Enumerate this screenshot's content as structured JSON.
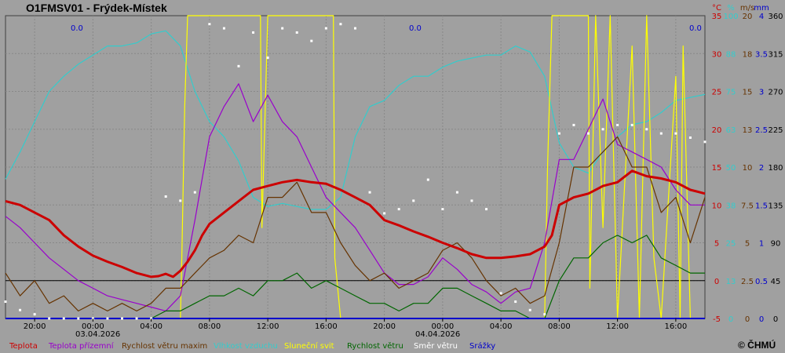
{
  "title": "O1FMSV01 - Frýdek-Místek",
  "copyright": "© ČHMÚ",
  "precip_notes": [
    "0.0",
    "0.0",
    "0.0"
  ],
  "date_labels": [
    "03.04.2026",
    "04.04.2026"
  ],
  "colors": {
    "temperature": "#cc0000",
    "ground_temperature": "#9900cc",
    "wind_gust": "#663300",
    "humidity": "#33cccc",
    "sunshine": "#ffff00",
    "wind_speed": "#006600",
    "wind_direction": "#ffffff",
    "precipitation": "#0000cc",
    "background": "#a0a0a0",
    "grid": "#808080"
  },
  "chart_data": {
    "type": "line",
    "title": "O1FMSV01 - Frýdek-Místek",
    "x_unit": "hours since 02.04.2026 18:00",
    "x_range": [
      0,
      48
    ],
    "x_ticks": [
      {
        "label": "20:00",
        "x": 2
      },
      {
        "label": "00:00",
        "x": 6
      },
      {
        "label": "04:00",
        "x": 10
      },
      {
        "label": "08:00",
        "x": 14
      },
      {
        "label": "12:00",
        "x": 18
      },
      {
        "label": "16:00",
        "x": 22
      },
      {
        "label": "20:00",
        "x": 26
      },
      {
        "label": "00:00",
        "x": 30
      },
      {
        "label": "04:00",
        "x": 34
      },
      {
        "label": "08:00",
        "x": 38
      },
      {
        "label": "12:00",
        "x": 42
      },
      {
        "label": "16:00",
        "x": 46
      }
    ],
    "axes": [
      {
        "unit": "°C",
        "color": "#cc0000",
        "ticks": [
          "35",
          "30",
          "25",
          "20",
          "15",
          "10",
          "5",
          "0",
          "-5"
        ]
      },
      {
        "unit": "%",
        "color": "#33cccc",
        "ticks": [
          "100",
          "88",
          "75",
          "63",
          "50",
          "38",
          "25",
          "13",
          "0"
        ]
      },
      {
        "unit": "m/s",
        "color": "#663300",
        "ticks": [
          "20",
          "18",
          "15",
          "13",
          "10",
          "7.5",
          "5",
          "2.5",
          "0"
        ]
      },
      {
        "unit": "mm",
        "color": "#0000cc",
        "ticks": [
          "4",
          "3.5",
          "3",
          "2.5",
          "2",
          "1.5",
          "1",
          "0.5",
          "0"
        ]
      },
      {
        "unit": "",
        "color": "#000000",
        "ticks": [
          "360",
          "315",
          "270",
          "225",
          "180",
          "135",
          "90",
          "45",
          "0"
        ]
      }
    ],
    "y_range_temp": [
      -5,
      35
    ],
    "grid": true,
    "legend_position": "bottom",
    "series": [
      {
        "name": "Teplota",
        "axis": "°C",
        "color": "#cc0000",
        "x": [
          0,
          1,
          2,
          3,
          4,
          5,
          6,
          7,
          8,
          9,
          10,
          10.5,
          11,
          11.5,
          12,
          12.5,
          13,
          13.5,
          14,
          15,
          16,
          17,
          18,
          19,
          20,
          21,
          22,
          23,
          24,
          25,
          26,
          27,
          28,
          29,
          30,
          31,
          32,
          33,
          34,
          35,
          36,
          37,
          37.5,
          38,
          39,
          40,
          41,
          42,
          43,
          44,
          45,
          46,
          47,
          48
        ],
        "values": [
          10.5,
          10,
          9,
          8,
          6,
          4.5,
          3.3,
          2.5,
          1.8,
          1,
          0.5,
          0.6,
          0.9,
          0.5,
          1.3,
          2.5,
          4,
          6,
          7.5,
          9,
          10.5,
          12,
          12.5,
          13,
          13.3,
          13,
          12.8,
          12,
          11,
          10,
          8,
          7.3,
          6.5,
          5.8,
          5,
          4.3,
          3.5,
          3,
          3,
          3.2,
          3.5,
          4.5,
          6,
          10,
          11,
          11.5,
          12.5,
          13,
          14.5,
          13.8,
          13.5,
          13,
          12,
          11.5
        ]
      },
      {
        "name": "Teplota přízemní",
        "axis": "°C",
        "color": "#9900cc",
        "x": [
          0,
          1,
          2,
          3,
          4,
          5,
          6,
          7,
          8,
          9,
          10,
          11,
          12,
          13,
          14,
          15,
          16,
          17,
          18,
          19,
          20,
          21,
          22,
          23,
          24,
          25,
          26,
          27,
          28,
          29,
          30,
          31,
          32,
          33,
          34,
          35,
          36,
          37,
          38,
          39,
          40,
          41,
          42,
          43,
          44,
          45,
          46,
          47,
          48
        ],
        "values": [
          8.5,
          7,
          5,
          3,
          1.5,
          0,
          -1,
          -2,
          -2.5,
          -3,
          -3.5,
          -4,
          -2,
          8,
          19,
          23,
          26,
          21,
          24.5,
          21,
          19,
          15,
          11,
          9,
          7,
          4,
          1,
          -0.5,
          -0.5,
          0.5,
          3,
          1.5,
          -0.5,
          -1.5,
          -3,
          -1.5,
          -1,
          5,
          16,
          16,
          20,
          24,
          18,
          17,
          16,
          15,
          12,
          10,
          10
        ]
      },
      {
        "name": "Rychlost větru maxim",
        "axis": "m/s",
        "color": "#663300",
        "x": [
          0,
          1,
          2,
          3,
          4,
          5,
          6,
          7,
          8,
          9,
          10,
          11,
          12,
          13,
          14,
          15,
          16,
          17,
          18,
          19,
          20,
          21,
          22,
          23,
          24,
          25,
          26,
          27,
          28,
          29,
          30,
          31,
          32,
          33,
          34,
          35,
          36,
          37,
          38,
          39,
          40,
          41,
          42,
          43,
          44,
          45,
          46,
          47,
          48
        ],
        "values": [
          3,
          1.5,
          2.5,
          1,
          1.5,
          0.5,
          1,
          0.5,
          1,
          0.5,
          1,
          2,
          2,
          3,
          4,
          4.5,
          5.5,
          5,
          8,
          8,
          9,
          7,
          7,
          5,
          3.5,
          2.5,
          3,
          2,
          2.5,
          3,
          4.5,
          5,
          4,
          2.5,
          1.5,
          2,
          1,
          1.5,
          5,
          10,
          10,
          11,
          12,
          10,
          10,
          7,
          8,
          5,
          8
        ]
      },
      {
        "name": "Vlhkost vzduchu",
        "axis": "%",
        "color": "#33cccc",
        "x": [
          0,
          1,
          2,
          3,
          4,
          5,
          6,
          7,
          8,
          9,
          10,
          11,
          12,
          13,
          14,
          15,
          16,
          17,
          18,
          19,
          20,
          21,
          22,
          23,
          24,
          25,
          26,
          27,
          28,
          29,
          30,
          31,
          32,
          33,
          34,
          35,
          36,
          37,
          38,
          39,
          40,
          41,
          42,
          43,
          44,
          45,
          46,
          47,
          48
        ],
        "values": [
          46,
          55,
          65,
          75,
          80,
          84,
          87,
          90,
          90,
          91,
          94,
          95,
          90,
          75,
          65,
          60,
          52,
          40,
          37,
          38,
          37,
          36,
          36,
          40,
          60,
          70,
          72,
          77,
          80,
          80,
          83,
          85,
          86,
          87,
          87,
          90,
          88,
          80,
          58,
          50,
          48,
          55,
          60,
          64,
          65,
          68,
          72,
          73,
          74
        ]
      },
      {
        "name": "Sluneční svit",
        "axis": "%",
        "color": "#ffff00",
        "x": [
          0,
          12,
          12.1,
          12.3,
          12.5,
          13.5,
          17,
          17.5,
          17.6,
          18,
          22,
          22.5,
          22.6,
          23,
          37,
          37.2,
          37.5,
          40,
          40.1,
          40.5,
          41,
          41.5,
          42,
          43,
          43.5,
          44,
          44.5,
          45,
          46,
          46.3,
          46.5,
          47,
          48
        ],
        "values": [
          0,
          0,
          20,
          70,
          100,
          100,
          100,
          100,
          30,
          100,
          100,
          100,
          20,
          0,
          0,
          50,
          100,
          100,
          10,
          100,
          30,
          100,
          0,
          90,
          0,
          100,
          20,
          0,
          80,
          0,
          90,
          0,
          0
        ]
      },
      {
        "name": "Rychlost větru",
        "axis": "m/s",
        "color": "#006600",
        "x": [
          0,
          1,
          2,
          3,
          4,
          5,
          6,
          7,
          8,
          9,
          10,
          11,
          12,
          13,
          14,
          15,
          16,
          17,
          18,
          19,
          20,
          21,
          22,
          23,
          24,
          25,
          26,
          27,
          28,
          29,
          30,
          31,
          32,
          33,
          34,
          35,
          36,
          37,
          38,
          39,
          40,
          41,
          42,
          43,
          44,
          45,
          46,
          47,
          48
        ],
        "values": [
          0,
          0,
          0,
          0,
          0,
          0,
          0,
          0,
          0,
          0,
          0,
          0.5,
          0.5,
          1,
          1.5,
          1.5,
          2,
          1.5,
          2.5,
          2.5,
          3,
          2,
          2.5,
          2,
          1.5,
          1,
          1,
          0.5,
          1,
          1,
          2,
          2,
          1.5,
          1,
          0.5,
          0.5,
          0,
          0,
          2.5,
          4,
          4,
          5,
          5.5,
          5,
          5.5,
          4,
          3.5,
          3,
          3
        ]
      },
      {
        "name": "Směr větru",
        "axis": "deg",
        "color": "#ffffff",
        "x": [
          0,
          1,
          2,
          3,
          4,
          5,
          6,
          7,
          8,
          9,
          10,
          11,
          12,
          13,
          14,
          15,
          16,
          17,
          18,
          19,
          20,
          21,
          22,
          23,
          24,
          25,
          26,
          27,
          28,
          29,
          30,
          31,
          32,
          33,
          34,
          35,
          36,
          37,
          38,
          39,
          40,
          41,
          42,
          43,
          44,
          45,
          46,
          47,
          48
        ],
        "values": [
          20,
          10,
          5,
          0,
          0,
          0,
          0,
          0,
          0,
          0,
          0,
          145,
          140,
          150,
          350,
          345,
          300,
          340,
          310,
          345,
          340,
          330,
          345,
          350,
          345,
          150,
          125,
          130,
          140,
          165,
          130,
          150,
          140,
          130,
          30,
          20,
          10,
          5,
          220,
          230,
          220,
          225,
          230,
          230,
          225,
          220,
          220,
          215,
          210
        ]
      },
      {
        "name": "Srážky",
        "axis": "mm",
        "color": "#0000cc",
        "x": [
          0,
          48
        ],
        "values": [
          0,
          0
        ]
      }
    ]
  }
}
